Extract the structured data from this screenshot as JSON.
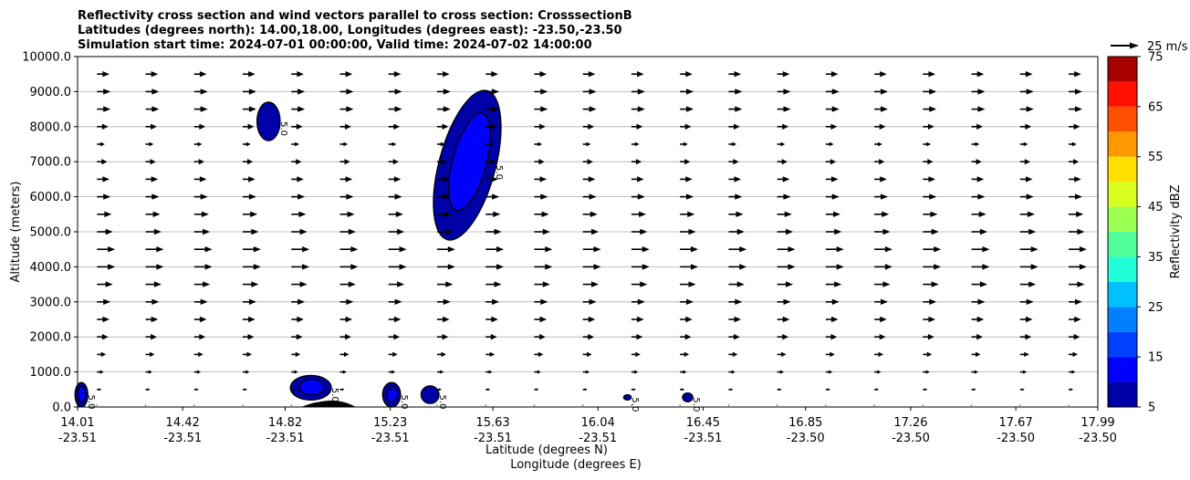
{
  "chart_data": {
    "type": "contourf_with_quiver",
    "title_lines": [
      "Reflectivity cross section and wind vectors parallel to cross section: CrosssectionB",
      "Latitudes (degrees north): 14.00,18.00, Longitudes (degrees east): -23.50,-23.50",
      "Simulation start time: 2024-07-01 00:00:00, Valid time: 2024-07-02 14:00:00"
    ],
    "ylabel": "Altitude (meters)",
    "xlabel_lat": "Latitude (degrees N)",
    "xlabel_lon": "Longitude (degrees E)",
    "ylim": [
      0,
      10000
    ],
    "y_ticks": [
      "0.0",
      "1000.0",
      "2000.0",
      "3000.0",
      "4000.0",
      "5000.0",
      "6000.0",
      "7000.0",
      "8000.0",
      "9000.0",
      "10000.0"
    ],
    "xlim": [
      14.01,
      17.99
    ],
    "x_ticks": [
      {
        "lat": "14.01",
        "lon": "-23.51"
      },
      {
        "lat": "14.42",
        "lon": "-23.51"
      },
      {
        "lat": "14.82",
        "lon": "-23.51"
      },
      {
        "lat": "15.23",
        "lon": "-23.51"
      },
      {
        "lat": "15.63",
        "lon": "-23.51"
      },
      {
        "lat": "16.04",
        "lon": "-23.51"
      },
      {
        "lat": "16.45",
        "lon": "-23.51"
      },
      {
        "lat": "16.85",
        "lon": "-23.50"
      },
      {
        "lat": "17.26",
        "lon": "-23.50"
      },
      {
        "lat": "17.67",
        "lon": "-23.50"
      },
      {
        "lat": "17.99",
        "lon": "-23.50"
      }
    ],
    "horizontal_grid": true,
    "colorbar": {
      "label": "Reflectivity dBZ",
      "tick_labels": [
        "5",
        "15",
        "25",
        "35",
        "45",
        "55",
        "65",
        "75"
      ],
      "levels": [
        5,
        10,
        15,
        20,
        25,
        30,
        35,
        40,
        45,
        50,
        55,
        60,
        65,
        70,
        75
      ],
      "colors": [
        "#0000a8",
        "#0000ff",
        "#0040ff",
        "#0080ff",
        "#00c0ff",
        "#20ffd8",
        "#50ff9a",
        "#9aff50",
        "#d8ff20",
        "#ffe000",
        "#ff9800",
        "#ff5000",
        "#ff1000",
        "#a80000"
      ]
    },
    "quiver_key": {
      "label": "25 m/s",
      "speed": 25
    },
    "contour_label": "5.0",
    "reflectivity_cells": [
      {
        "lat": [
          14.0,
          14.05
        ],
        "alt": [
          0,
          700
        ],
        "max_dbz": 12
      },
      {
        "lat": [
          14.71,
          14.8
        ],
        "alt": [
          7600,
          8700
        ],
        "max_dbz": 8
      },
      {
        "lat": [
          14.84,
          15.0
        ],
        "alt": [
          200,
          900
        ],
        "max_dbz": 11
      },
      {
        "lat": [
          15.2,
          15.27
        ],
        "alt": [
          0,
          700
        ],
        "max_dbz": 11
      },
      {
        "lat": [
          15.35,
          15.42
        ],
        "alt": [
          100,
          600
        ],
        "max_dbz": 9
      },
      {
        "lat": [
          15.42,
          15.64
        ],
        "alt": [
          4700,
          9100
        ],
        "max_dbz": 14
      },
      {
        "lat": [
          16.14,
          16.17
        ],
        "alt": [
          200,
          350
        ],
        "max_dbz": 6
      },
      {
        "lat": [
          16.37,
          16.41
        ],
        "alt": [
          150,
          400
        ],
        "max_dbz": 7
      }
    ],
    "wind_vectors": {
      "description": "Wind vectors parallel to cross section, blowing toward higher latitude (rightward)",
      "altitudes": [
        50,
        500,
        1000,
        1500,
        2000,
        2500,
        3000,
        3500,
        4000,
        4500,
        5000,
        5500,
        6000,
        6500,
        7000,
        7500,
        8000,
        8500,
        9000,
        9500
      ],
      "speeds_m_s": [
        0,
        4,
        6,
        8,
        10,
        11,
        12,
        14,
        16,
        16,
        14,
        13,
        12,
        11,
        9,
        7,
        10,
        12,
        12,
        11
      ]
    }
  }
}
